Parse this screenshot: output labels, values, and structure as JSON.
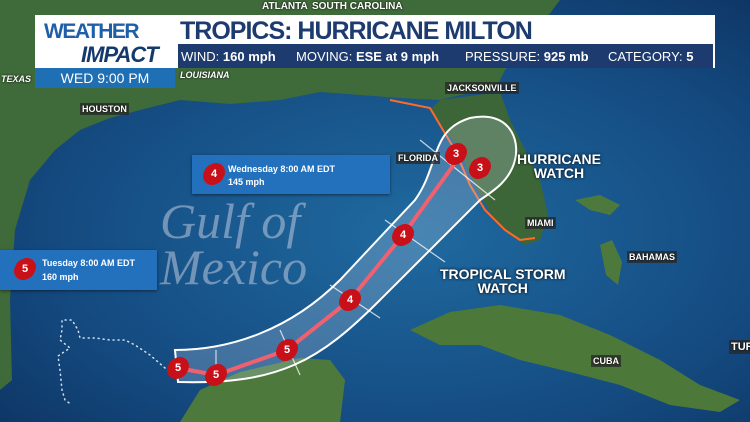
{
  "header": {
    "logo_line1": "WEATHER",
    "logo_line2": "IMPACT",
    "title": "TROPICS: HURRICANE MILTON",
    "time": "WED  9:00 PM",
    "stats": [
      {
        "label": "WIND:",
        "value": "160 mph"
      },
      {
        "label": "MOVING:",
        "value": "ESE at 9 mph"
      },
      {
        "label": "PRESSURE:",
        "value": "925 mb"
      },
      {
        "label": "CATEGORY:",
        "value": "5"
      }
    ]
  },
  "map": {
    "places": {
      "atlanta": "ATLANTA",
      "south_carolina": "SOUTH CAROLINA",
      "texas": "TEXAS",
      "louisiana": "LOUISIANA",
      "houston": "HOUSTON",
      "jacksonville": "JACKSONVILLE",
      "florida": "FLORIDA",
      "miami": "MIAMI",
      "bahamas": "BAHAMAS",
      "cuba": "CUBA",
      "turks": "TUR"
    },
    "watermark": "Gulf of Mexico",
    "hurricane_watch": [
      "HURRICANE",
      "WATCH"
    ],
    "tropical_storm_watch": [
      "TROPICAL STORM",
      "WATCH"
    ],
    "track_categories": [
      "5",
      "5",
      "5",
      "4",
      "4",
      "3",
      "3"
    ],
    "forecast_boxes": [
      {
        "category": "4",
        "time": "Wednesday 8:00 AM EDT",
        "wind": "145 mph"
      },
      {
        "category": "5",
        "time": "Tuesday 8:00 AM EDT",
        "wind": "160 mph"
      }
    ],
    "colors": {
      "track": "#f06070",
      "cone": "#ffffff",
      "hurricane_icon": "#c81018",
      "header_navy": "#1d3b6f",
      "time_blue": "#1f6fb5",
      "box_blue": "#2371bd"
    }
  }
}
